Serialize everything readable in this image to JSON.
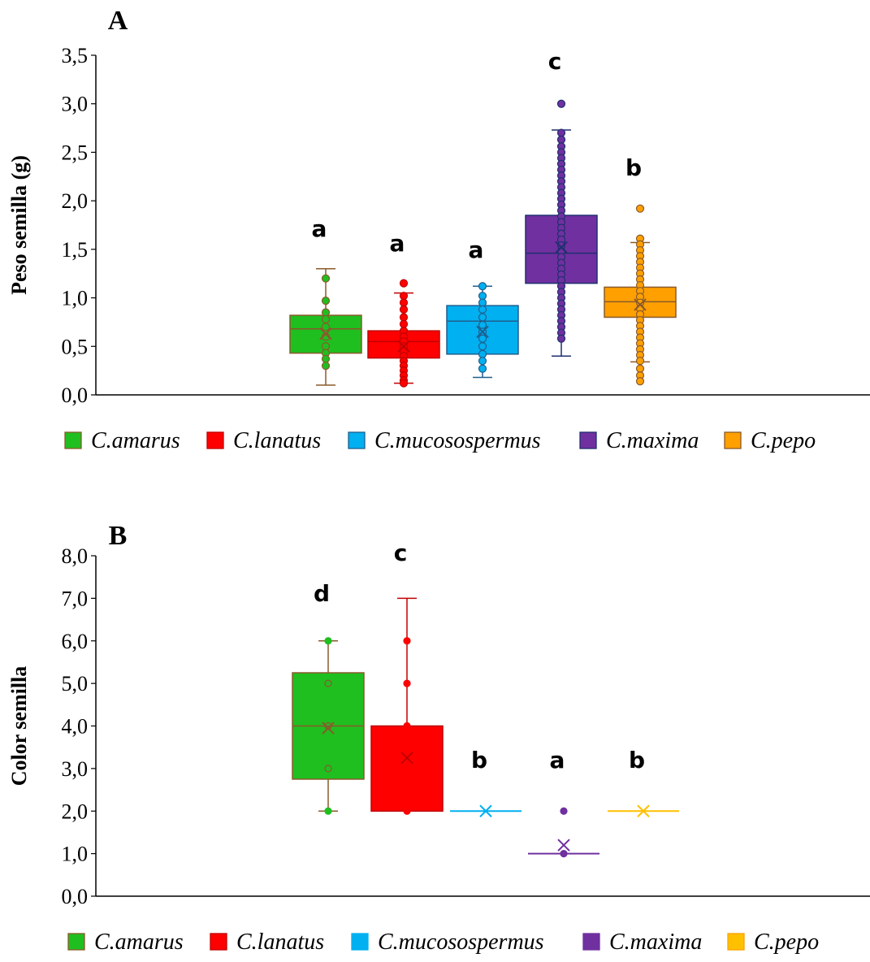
{
  "chart_data": [
    {
      "panel_label": "A",
      "type": "box",
      "ylabel": "Peso semilla (g)",
      "ylim": [
        0,
        3.5
      ],
      "yticks": [
        "0,0",
        "0,5",
        "1,0",
        "1,5",
        "2,0",
        "2,5",
        "3,0",
        "3,5"
      ],
      "grid": false,
      "legend_position": "bottom",
      "series": [
        {
          "name": "C.amarus",
          "color": "#1fbf1f",
          "edge": "#8a5a2b",
          "min": 0.1,
          "q1": 0.43,
          "median": 0.68,
          "q3": 0.82,
          "max": 1.3,
          "mean": 0.63,
          "letter": "a",
          "points": [
            1.2,
            0.97,
            0.85,
            0.78,
            0.7,
            0.6,
            0.5,
            0.43,
            0.37,
            0.3
          ]
        },
        {
          "name": "C.lanatus",
          "color": "#ff0000",
          "edge": "#c00000",
          "min": 0.12,
          "q1": 0.38,
          "median": 0.55,
          "q3": 0.66,
          "max": 1.05,
          "mean": 0.5,
          "letter": "a",
          "points": [
            1.15,
            1.02,
            0.95,
            0.88,
            0.8,
            0.73,
            0.66,
            0.6,
            0.55,
            0.5,
            0.45,
            0.4,
            0.35,
            0.3,
            0.25,
            0.2,
            0.15,
            0.12
          ]
        },
        {
          "name": "C.mucosospermus",
          "color": "#00b0f0",
          "edge": "#1f5f8f",
          "min": 0.18,
          "q1": 0.42,
          "median": 0.76,
          "q3": 0.92,
          "max": 1.12,
          "mean": 0.65,
          "letter": "a",
          "points": [
            1.12,
            1.02,
            0.95,
            0.88,
            0.8,
            0.72,
            0.65,
            0.58,
            0.5,
            0.42,
            0.35,
            0.27
          ]
        },
        {
          "name": "C.maxima",
          "color": "#7030a0",
          "edge": "#1f2f6f",
          "min": 0.4,
          "q1": 1.15,
          "median": 1.46,
          "q3": 1.85,
          "max": 2.73,
          "mean": 1.52,
          "letter": "c",
          "points": [
            3.0,
            2.7,
            2.63,
            2.56,
            2.5,
            2.44,
            2.38,
            2.32,
            2.26,
            2.2,
            2.14,
            2.08,
            2.02,
            1.96,
            1.9,
            1.84,
            1.78,
            1.72,
            1.66,
            1.6,
            1.54,
            1.48,
            1.42,
            1.36,
            1.3,
            1.24,
            1.18,
            1.12,
            1.06,
            1.0,
            0.94,
            0.88,
            0.82,
            0.76,
            0.7,
            0.64,
            0.58
          ]
        },
        {
          "name": "C.pepo",
          "color": "#ffa000",
          "edge": "#8a5a2b",
          "min": 0.34,
          "q1": 0.8,
          "median": 0.96,
          "q3": 1.11,
          "max": 1.57,
          "mean": 0.93,
          "letter": "b",
          "points": [
            1.92,
            1.61,
            1.55,
            1.49,
            1.43,
            1.37,
            1.31,
            1.25,
            1.19,
            1.13,
            1.07,
            1.01,
            0.95,
            0.89,
            0.83,
            0.77,
            0.71,
            0.65,
            0.59,
            0.53,
            0.47,
            0.41,
            0.35,
            0.27,
            0.2,
            0.14
          ]
        }
      ]
    },
    {
      "panel_label": "B",
      "type": "box",
      "ylabel": "Color semilla",
      "ylim": [
        0,
        8
      ],
      "yticks": [
        "0,0",
        "1,0",
        "2,0",
        "3,0",
        "4,0",
        "5,0",
        "6,0",
        "7,0",
        "8,0"
      ],
      "grid": false,
      "legend_position": "bottom",
      "series": [
        {
          "name": "C.amarus",
          "color": "#1fbf1f",
          "edge": "#8a5a2b",
          "min": 2,
          "q1": 2.75,
          "median": 4,
          "q3": 5.25,
          "max": 6,
          "mean": 3.95,
          "letter": "d",
          "points": [
            6,
            5,
            4,
            3,
            2
          ]
        },
        {
          "name": "C.lanatus",
          "color": "#ff0000",
          "edge": "#c00000",
          "min": 2,
          "q1": 2,
          "median": 2,
          "q3": 4,
          "max": 7,
          "mean": 3.25,
          "letter": "c",
          "points": [
            6,
            5,
            4,
            3,
            2
          ]
        },
        {
          "name": "C.mucosospermus",
          "color": "#00b0f0",
          "edge": "#00b0f0",
          "min": 2,
          "q1": 2,
          "median": 2,
          "q3": 2,
          "max": 2,
          "mean": 2,
          "letter": "b",
          "points": []
        },
        {
          "name": "C.maxima",
          "color": "#7030a0",
          "edge": "#7030a0",
          "min": 1,
          "q1": 1,
          "median": 1,
          "q3": 1,
          "max": 1,
          "mean": 1.2,
          "letter": "a",
          "points": [
            2,
            1
          ]
        },
        {
          "name": "C.pepo",
          "color": "#ffc000",
          "edge": "#ffa000",
          "min": 2,
          "q1": 2,
          "median": 2,
          "q3": 2,
          "max": 2,
          "mean": 2,
          "letter": "b",
          "points": []
        }
      ]
    }
  ]
}
